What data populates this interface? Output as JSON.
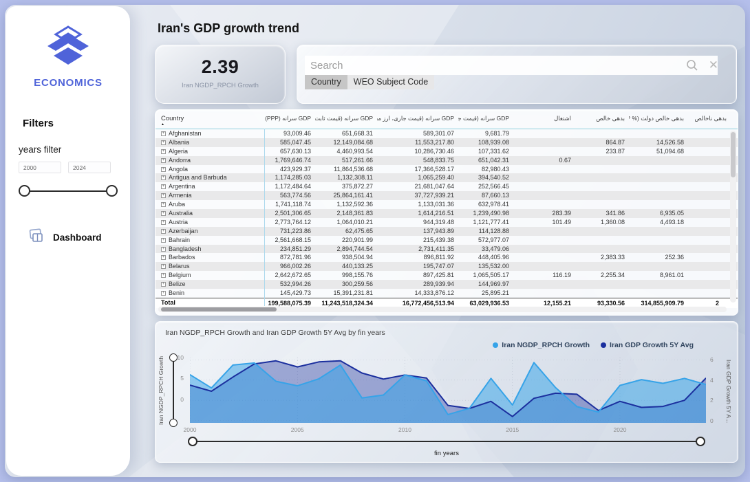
{
  "page": {
    "title": "Iran's GDP growth trend"
  },
  "sidebar": {
    "brand": "ECONOMICS",
    "filters_heading": "Filters",
    "years_filter_label": "years filter",
    "year_min": "2000",
    "year_max": "2024",
    "dashboard_label": "Dashboard"
  },
  "kpi": {
    "value": "2.39",
    "label": "Iran NGDP_RPCH Growth"
  },
  "search": {
    "placeholder": "Search",
    "clear_icon_glyph": "✕",
    "chips": [
      "Country",
      "WEO Subject Code"
    ]
  },
  "table": {
    "columns": [
      "Country",
      "GDP سرانه (PPP)",
      "GDP سرانه (قیمت ثابت)",
      "GDP سرانه (قیمت جاری، ارز محلی)",
      "GDP سرانه (قیمت جاری، دلار)",
      "اشتغال",
      "بدهی خالص",
      "بدهی خالص دولت (% GDP)",
      "بدهی ناخالص"
    ],
    "rows": [
      {
        "name": "Afghanistan",
        "values": [
          "93,009.46",
          "651,668.31",
          "589,301.07",
          "9,681.79",
          "",
          "",
          "",
          ""
        ]
      },
      {
        "name": "Albania",
        "values": [
          "585,047.45",
          "12,149,084.68",
          "11,553,217.80",
          "108,939.08",
          "",
          "864.87",
          "14,526.58",
          ""
        ]
      },
      {
        "name": "Algeria",
        "values": [
          "657,630.13",
          "4,460,993.54",
          "10,286,730.46",
          "107,331.62",
          "",
          "233.87",
          "51,094.68",
          ""
        ]
      },
      {
        "name": "Andorra",
        "values": [
          "1,769,646.74",
          "517,261.66",
          "548,833.75",
          "651,042.31",
          "0.67",
          "",
          "",
          ""
        ]
      },
      {
        "name": "Angola",
        "values": [
          "423,929.37",
          "11,864,536.68",
          "17,366,528.17",
          "82,980.43",
          "",
          "",
          "",
          ""
        ]
      },
      {
        "name": "Antigua and Barbuda",
        "values": [
          "1,174,285.03",
          "1,132,308.11",
          "1,065,259.40",
          "394,540.52",
          "",
          "",
          "",
          ""
        ]
      },
      {
        "name": "Argentina",
        "values": [
          "1,172,484.64",
          "375,872.27",
          "21,681,047.64",
          "252,566.45",
          "",
          "",
          "",
          ""
        ]
      },
      {
        "name": "Armenia",
        "values": [
          "563,774.56",
          "25,864,161.41",
          "37,727,939.21",
          "87,660.13",
          "",
          "",
          "",
          ""
        ]
      },
      {
        "name": "Aruba",
        "values": [
          "1,741,118.74",
          "1,132,592.36",
          "1,133,031.36",
          "632,978.41",
          "",
          "",
          "",
          ""
        ]
      },
      {
        "name": "Australia",
        "values": [
          "2,501,306.65",
          "2,148,361.83",
          "1,614,216.51",
          "1,239,490.98",
          "283.39",
          "341.86",
          "6,935.05",
          ""
        ]
      },
      {
        "name": "Austria",
        "values": [
          "2,773,764.12",
          "1,064,010.21",
          "944,319.48",
          "1,121,777.41",
          "101.49",
          "1,360.08",
          "4,493.18",
          ""
        ]
      },
      {
        "name": "Azerbaijan",
        "values": [
          "731,223.86",
          "62,475.65",
          "137,943.89",
          "114,128.88",
          "",
          "",
          "",
          ""
        ]
      },
      {
        "name": "Bahrain",
        "values": [
          "2,561,668.15",
          "220,901.99",
          "215,439.38",
          "572,977.07",
          "",
          "",
          "",
          ""
        ]
      },
      {
        "name": "Bangladesh",
        "values": [
          "234,851.29",
          "2,894,744.54",
          "2,731,411.35",
          "33,479.06",
          "",
          "",
          "",
          ""
        ]
      },
      {
        "name": "Barbados",
        "values": [
          "872,781.96",
          "938,504.94",
          "896,811.92",
          "448,405.96",
          "",
          "2,383.33",
          "252.36",
          ""
        ]
      },
      {
        "name": "Belarus",
        "values": [
          "966,002.26",
          "440,133.25",
          "195,747.07",
          "135,532.00",
          "",
          "",
          "",
          ""
        ]
      },
      {
        "name": "Belgium",
        "values": [
          "2,642,672.65",
          "998,155.76",
          "897,425.81",
          "1,065,505.17",
          "116.19",
          "2,255.34",
          "8,961.01",
          ""
        ]
      },
      {
        "name": "Belize",
        "values": [
          "532,994.26",
          "300,259.56",
          "289,939.94",
          "144,969.97",
          "",
          "",
          "",
          ""
        ]
      },
      {
        "name": "Benin",
        "values": [
          "145,429.73",
          "15,391,231.81",
          "14,333,876.12",
          "25,895.21",
          "",
          "",
          "",
          ""
        ]
      }
    ],
    "total": {
      "name": "Total",
      "values": [
        "199,588,075.39",
        "11,243,518,324.34",
        "16,772,456,513.94",
        "63,029,936.53",
        "12,155.21",
        "93,330.56",
        "314,855,909.79",
        "2"
      ]
    }
  },
  "chart_data": {
    "type": "area",
    "title": "Iran NGDP_RPCH Growth and Iran GDP Growth 5Y Avg by fin years",
    "xlabel": "fin years",
    "x": [
      2000,
      2001,
      2002,
      2003,
      2004,
      2005,
      2006,
      2007,
      2008,
      2009,
      2010,
      2011,
      2012,
      2013,
      2014,
      2015,
      2016,
      2017,
      2018,
      2019,
      2020,
      2021,
      2022,
      2023,
      2024
    ],
    "x_ticks": [
      2000,
      2005,
      2010,
      2015,
      2020
    ],
    "series": [
      {
        "name": "Iran NGDP_RPCH Growth",
        "axis": "left",
        "color": "#36a3e8",
        "fill": "rgba(54,163,232,0.52)",
        "values": [
          5.9,
          2.7,
          8.2,
          8.7,
          4.3,
          3.2,
          4.9,
          8.2,
          0.3,
          1.0,
          5.8,
          4.4,
          -3.7,
          -2.2,
          5.0,
          -1.4,
          8.8,
          2.8,
          -1.8,
          -3.1,
          3.3,
          4.7,
          3.8,
          5.0,
          3.5
        ]
      },
      {
        "name": "Iran GDP Growth 5Y Avg",
        "axis": "right",
        "color": "#1b2f9e",
        "fill": "rgba(27,47,158,0.38)",
        "values": [
          3.5,
          2.9,
          4.3,
          5.6,
          5.9,
          5.3,
          5.8,
          5.9,
          4.7,
          4.1,
          4.5,
          4.2,
          1.5,
          1.2,
          1.9,
          0.4,
          2.2,
          2.7,
          2.6,
          1.0,
          1.9,
          1.3,
          1.4,
          2.0,
          4.2
        ]
      }
    ],
    "left_axis": {
      "title": "Iran NGDP_RPCH Growth",
      "ticks": [
        10,
        5,
        0
      ],
      "ylim": [
        -5.7,
        10
      ]
    },
    "right_axis": {
      "title": "Iran GDP Growth 5Y A...",
      "ticks": [
        6,
        4,
        2,
        0
      ],
      "ylim": [
        0,
        6
      ]
    },
    "grid": true,
    "legend_position": "top-right"
  }
}
